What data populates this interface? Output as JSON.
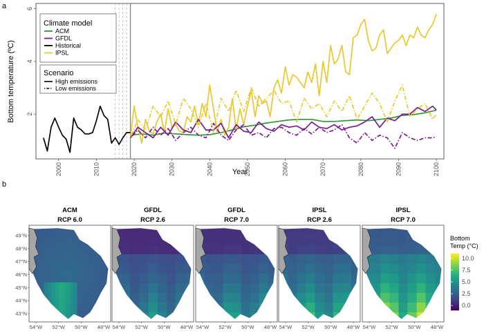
{
  "panels": {
    "a_label": "a",
    "b_label": "b"
  },
  "chart_data": [
    {
      "type": "line",
      "xlabel": "Year",
      "ylabel": "Bottom temperature (ºC)",
      "xlim": [
        1994,
        2102
      ],
      "ylim": [
        0.3,
        6.2
      ],
      "xticks": [
        2000,
        2010,
        2020,
        2030,
        2040,
        2050,
        2060,
        2070,
        2080,
        2090,
        2100
      ],
      "yticks": [
        2,
        4,
        6
      ],
      "vlines": {
        "dashed": [
          2015,
          2016,
          2017,
          2018
        ],
        "solid": 2019
      },
      "legend": {
        "placement": "top-left",
        "model_title": "Climate model",
        "models": [
          {
            "name": "ACM",
            "color": "#2e9632"
          },
          {
            "name": "GFDL",
            "color": "#7b1a8c"
          },
          {
            "name": "Historical",
            "color": "#000000"
          },
          {
            "name": "IPSL",
            "color": "#e8c82c"
          }
        ],
        "scenario_title": "Scenario",
        "scenarios": [
          {
            "name": "High emissions",
            "dash": "solid"
          },
          {
            "name": "Low emissions",
            "dash": "dotdash"
          }
        ]
      },
      "series": [
        {
          "name": "Historical",
          "scenario": "",
          "color": "#000000",
          "dash": "solid",
          "x": [
            1996,
            1997,
            1998,
            1999,
            2000,
            2001,
            2002,
            2003,
            2004,
            2005,
            2006,
            2007,
            2008,
            2009,
            2010,
            2011,
            2012,
            2013,
            2014,
            2015,
            2016,
            2017,
            2018,
            2019
          ],
          "y": [
            1.1,
            0.6,
            1.5,
            1.85,
            1.5,
            1.2,
            1.05,
            0.55,
            1.85,
            1.5,
            1.4,
            1.25,
            1.25,
            1.3,
            1.75,
            2.3,
            1.95,
            1.8,
            0.9,
            1.1,
            0.85,
            1.1,
            1.3,
            1.3
          ]
        },
        {
          "name": "ACM",
          "scenario": "High emissions",
          "color": "#2e9632",
          "dash": "solid",
          "x": [
            2019,
            2022,
            2025,
            2028,
            2031,
            2034,
            2037,
            2040,
            2043,
            2046,
            2049,
            2052,
            2055,
            2058,
            2061,
            2064,
            2067,
            2070,
            2073,
            2076,
            2079,
            2082,
            2085,
            2088,
            2091,
            2094,
            2097,
            2100
          ],
          "y": [
            1.2,
            1.25,
            1.2,
            1.28,
            1.25,
            1.22,
            1.2,
            1.22,
            1.3,
            1.4,
            1.52,
            1.58,
            1.66,
            1.72,
            1.78,
            1.8,
            1.8,
            1.72,
            1.72,
            1.75,
            1.78,
            1.75,
            1.8,
            1.85,
            1.95,
            1.98,
            2.05,
            2.15
          ]
        },
        {
          "name": "IPSL",
          "scenario": "High emissions",
          "color": "#e8c82c",
          "dash": "solid",
          "x": [
            2019,
            2020,
            2021,
            2022,
            2023,
            2024,
            2025,
            2026,
            2027,
            2028,
            2029,
            2030,
            2031,
            2032,
            2033,
            2034,
            2035,
            2036,
            2037,
            2038,
            2039,
            2040,
            2041,
            2042,
            2043,
            2044,
            2045,
            2046,
            2047,
            2048,
            2049,
            2050,
            2051,
            2052,
            2053,
            2054,
            2055,
            2056,
            2057,
            2058,
            2059,
            2060,
            2061,
            2062,
            2063,
            2064,
            2065,
            2066,
            2067,
            2068,
            2069,
            2070,
            2071,
            2072,
            2073,
            2074,
            2075,
            2076,
            2077,
            2078,
            2079,
            2080,
            2081,
            2082,
            2083,
            2084,
            2085,
            2086,
            2087,
            2088,
            2089,
            2090,
            2091,
            2092,
            2093,
            2094,
            2095,
            2096,
            2097,
            2098,
            2099,
            2100
          ],
          "y": [
            1.1,
            2.3,
            1.5,
            0.9,
            1.8,
            1.35,
            1.25,
            1.7,
            2.0,
            1.3,
            2.2,
            1.5,
            1.6,
            1.35,
            1.3,
            1.9,
            1.7,
            2.3,
            1.6,
            2.4,
            1.9,
            3.1,
            2.2,
            1.3,
            1.8,
            1.2,
            1.5,
            2.6,
            1.4,
            2.2,
            1.6,
            2.3,
            2.9,
            1.9,
            2.7,
            2.4,
            2.5,
            1.9,
            3.0,
            3.3,
            2.8,
            3.8,
            3.1,
            3.5,
            3.4,
            3.2,
            3.0,
            3.6,
            3.2,
            3.9,
            2.7,
            4.0,
            3.2,
            4.6,
            3.9,
            4.1,
            4.6,
            3.6,
            3.5,
            4.9,
            5.0,
            5.4,
            5.6,
            4.8,
            4.4,
            4.5,
            5.0,
            5.2,
            4.3,
            4.5,
            4.7,
            4.8,
            5.0,
            4.6,
            5.0,
            4.9,
            5.3,
            5.0,
            4.9,
            5.2,
            5.4,
            5.8
          ]
        },
        {
          "name": "GFDL",
          "scenario": "High emissions",
          "color": "#7b1a8c",
          "dash": "solid",
          "x": [
            2019,
            2021,
            2023,
            2025,
            2027,
            2029,
            2031,
            2033,
            2035,
            2037,
            2039,
            2041,
            2043,
            2045,
            2047,
            2049,
            2051,
            2053,
            2055,
            2057,
            2059,
            2061,
            2063,
            2065,
            2067,
            2069,
            2071,
            2073,
            2075,
            2077,
            2079,
            2081,
            2083,
            2085,
            2087,
            2089,
            2091,
            2093,
            2095,
            2097,
            2099,
            2100
          ],
          "y": [
            1.1,
            1.5,
            1.3,
            1.1,
            1.5,
            1.2,
            1.7,
            1.4,
            1.3,
            1.8,
            1.4,
            1.4,
            1.65,
            1.1,
            1.6,
            1.35,
            1.3,
            1.7,
            1.45,
            1.35,
            1.6,
            1.5,
            1.55,
            1.4,
            1.7,
            1.5,
            1.45,
            1.6,
            1.4,
            1.5,
            1.55,
            1.7,
            1.9,
            1.5,
            1.85,
            1.75,
            2.0,
            2.0,
            2.25,
            2.1,
            2.3,
            2.15
          ]
        },
        {
          "name": "IPSL",
          "scenario": "Low emissions",
          "color": "#e8c82c",
          "dash": "dotdash",
          "x": [
            2019,
            2021,
            2023,
            2025,
            2027,
            2029,
            2031,
            2033,
            2035,
            2037,
            2039,
            2041,
            2043,
            2045,
            2047,
            2049,
            2051,
            2053,
            2055,
            2057,
            2059,
            2061,
            2063,
            2065,
            2067,
            2069,
            2071,
            2073,
            2075,
            2077,
            2079,
            2081,
            2083,
            2085,
            2087,
            2089,
            2091,
            2093,
            2095,
            2097,
            2099,
            2100
          ],
          "y": [
            1.1,
            1.8,
            1.4,
            2.3,
            1.9,
            2.5,
            1.6,
            2.6,
            2.2,
            1.5,
            2.4,
            1.3,
            2.6,
            2.1,
            2.9,
            2.1,
            3.0,
            2.3,
            2.6,
            2.9,
            2.4,
            2.5,
            1.7,
            2.6,
            2.2,
            2.4,
            1.9,
            2.5,
            2.1,
            2.7,
            1.8,
            2.3,
            2.8,
            2.4,
            1.7,
            2.5,
            3.1,
            1.9,
            2.2,
            2.4,
            1.8,
            2.0
          ]
        },
        {
          "name": "GFDL",
          "scenario": "Low emissions",
          "color": "#7b1a8c",
          "dash": "dotdash",
          "x": [
            2019,
            2021,
            2023,
            2025,
            2027,
            2029,
            2031,
            2033,
            2035,
            2037,
            2039,
            2041,
            2043,
            2045,
            2047,
            2049,
            2051,
            2053,
            2055,
            2057,
            2059,
            2061,
            2063,
            2065,
            2067,
            2069,
            2071,
            2073,
            2075,
            2077,
            2079,
            2081,
            2083,
            2085,
            2087,
            2089,
            2091,
            2093,
            2095,
            2097,
            2099,
            2100
          ],
          "y": [
            1.1,
            1.4,
            1.1,
            1.5,
            1.2,
            1.45,
            1.0,
            1.3,
            1.5,
            1.2,
            1.1,
            1.65,
            1.2,
            1.0,
            1.4,
            1.6,
            1.2,
            1.3,
            1.1,
            1.45,
            1.5,
            1.3,
            1.2,
            1.45,
            1.25,
            1.5,
            1.3,
            1.4,
            1.6,
            1.1,
            0.9,
            1.3,
            1.0,
            1.2,
            1.1,
            0.7,
            1.3,
            1.1,
            1.0,
            1.1,
            1.1,
            1.15
          ]
        }
      ]
    },
    {
      "type": "heatmap",
      "legend_title": [
        "Bottom",
        "Temp (°C)"
      ],
      "colorbar_ticks": [
        "10.0",
        "7.5",
        "5.0",
        "2.5",
        "0.0"
      ],
      "colorbar_range": [
        -1,
        11
      ],
      "lat_ticks": [
        "49°N",
        "48°N",
        "47°N",
        "46°N",
        "45°N",
        "44°N",
        "43°N"
      ],
      "lon_ticks": [
        "54°W",
        "52°W",
        "50°W",
        "48°W"
      ],
      "maps": [
        {
          "model": "ACM",
          "scenario": "RCP 6.0",
          "style": "smooth",
          "base": 3.2,
          "south": 3.5
        },
        {
          "model": "GFDL",
          "scenario": "RCP 2.6",
          "style": "grid",
          "base": 1.6,
          "south": 4.5
        },
        {
          "model": "GFDL",
          "scenario": "RCP 7.0",
          "style": "grid",
          "base": 1.8,
          "south": 5.0
        },
        {
          "model": "IPSL",
          "scenario": "RCP 2.6",
          "style": "grid",
          "base": 2.2,
          "south": 6.0
        },
        {
          "model": "IPSL",
          "scenario": "RCP 7.0",
          "style": "grid",
          "base": 3.5,
          "south": 7.5
        }
      ]
    }
  ]
}
